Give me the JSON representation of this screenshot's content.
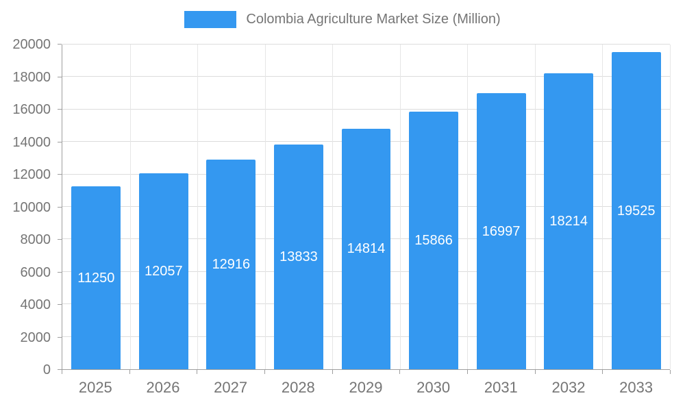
{
  "legend": {
    "title": "Colombia Agriculture Market Size (Million)",
    "swatch_color": "#3498f0"
  },
  "chart_data": {
    "type": "bar",
    "title": "Colombia Agriculture Market Size (Million)",
    "categories": [
      "2025",
      "2026",
      "2027",
      "2028",
      "2029",
      "2030",
      "2031",
      "2032",
      "2033"
    ],
    "values": [
      11250,
      12057,
      12916,
      13833,
      14814,
      15866,
      16997,
      18214,
      19525
    ],
    "xlabel": "",
    "ylabel": "",
    "ylim": [
      0,
      20000
    ],
    "ytick_step": 2000,
    "yticks": [
      0,
      2000,
      4000,
      6000,
      8000,
      10000,
      12000,
      14000,
      16000,
      18000,
      20000
    ],
    "bar_color": "#3498f0",
    "label_color": "#ffffff",
    "grid": true,
    "legend_position": "top"
  }
}
